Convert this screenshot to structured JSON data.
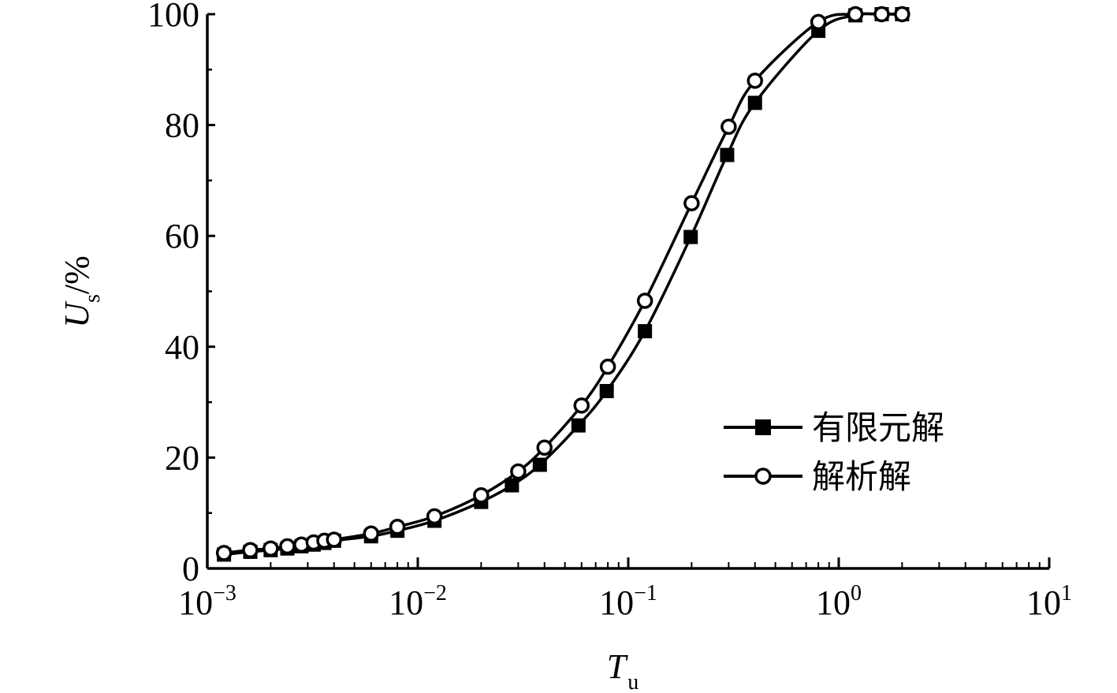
{
  "chart_data": {
    "type": "line",
    "xscale": "log",
    "xlim": [
      0.001,
      10
    ],
    "ylim": [
      0,
      100
    ],
    "grid": false,
    "legend_position": "right",
    "xlabel": "T",
    "xlabel_sub": "u",
    "ylabel": "U",
    "ylabel_sub": "s",
    "ylabel_suffix": "/%",
    "xticks": [
      {
        "base": "10",
        "exp": "−3",
        "value": 0.001
      },
      {
        "base": "10",
        "exp": "−2",
        "value": 0.01
      },
      {
        "base": "10",
        "exp": "−1",
        "value": 0.1
      },
      {
        "base": "10",
        "exp": "0",
        "value": 1
      },
      {
        "base": "10",
        "exp": "1",
        "value": 10
      }
    ],
    "yticks": [
      "0",
      "20",
      "40",
      "60",
      "80",
      "100"
    ],
    "series": [
      {
        "name": "有限元解",
        "marker": "filled-square",
        "x": [
          0.0012,
          0.0016,
          0.002,
          0.0024,
          0.0028,
          0.0032,
          0.0036,
          0.004,
          0.006,
          0.008,
          0.012,
          0.02,
          0.028,
          0.038,
          0.058,
          0.079,
          0.12,
          0.198,
          0.295,
          0.4,
          0.8,
          1.2,
          1.6,
          2.0
        ],
        "y": [
          2.5,
          3.0,
          3.3,
          3.6,
          4.0,
          4.3,
          4.6,
          5.0,
          5.8,
          6.8,
          8.6,
          12.0,
          15.0,
          18.7,
          25.8,
          32.0,
          42.8,
          59.8,
          74.6,
          84.0,
          97.0,
          99.8,
          100,
          100
        ]
      },
      {
        "name": "解析解",
        "marker": "open-circle",
        "x": [
          0.0012,
          0.0016,
          0.002,
          0.0024,
          0.0028,
          0.0032,
          0.0036,
          0.004,
          0.006,
          0.008,
          0.012,
          0.02,
          0.03,
          0.04,
          0.06,
          0.08,
          0.12,
          0.2,
          0.3,
          0.4,
          0.8,
          1.2,
          1.6,
          2.0
        ],
        "y": [
          2.8,
          3.3,
          3.6,
          4.0,
          4.3,
          4.7,
          5.0,
          5.2,
          6.3,
          7.5,
          9.4,
          13.2,
          17.5,
          21.8,
          29.4,
          36.4,
          48.3,
          65.9,
          79.7,
          88.0,
          98.6,
          100,
          100,
          100
        ]
      }
    ]
  }
}
